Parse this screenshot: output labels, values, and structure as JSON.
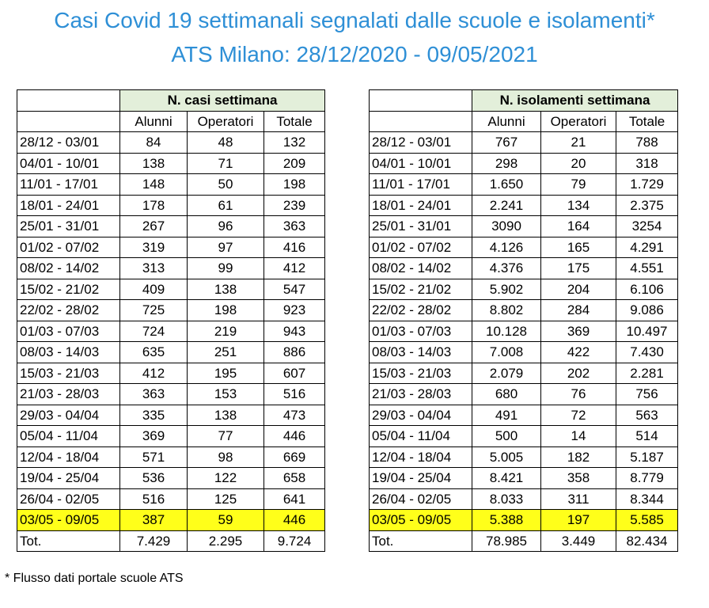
{
  "title_line1": "Casi Covid 19 settimanali segnalati dalle scuole e isolamenti*",
  "title_line2": "ATS Milano: 28/12/2020 - 09/05/2021",
  "columns": [
    "",
    "Alunni",
    "Operatori",
    "Totale"
  ],
  "left_table": {
    "header": "N. casi settimana",
    "rows": [
      [
        "28/12 - 03/01",
        "84",
        "48",
        "132"
      ],
      [
        "04/01 - 10/01",
        "138",
        "71",
        "209"
      ],
      [
        "11/01 - 17/01",
        "148",
        "50",
        "198"
      ],
      [
        "18/01 - 24/01",
        "178",
        "61",
        "239"
      ],
      [
        "25/01 - 31/01",
        "267",
        "96",
        "363"
      ],
      [
        "01/02 - 07/02",
        "319",
        "97",
        "416"
      ],
      [
        "08/02 - 14/02",
        "313",
        "99",
        "412"
      ],
      [
        "15/02 - 21/02",
        "409",
        "138",
        "547"
      ],
      [
        "22/02 - 28/02",
        "725",
        "198",
        "923"
      ],
      [
        "01/03 - 07/03",
        "724",
        "219",
        "943"
      ],
      [
        "08/03 - 14/03",
        "635",
        "251",
        "886"
      ],
      [
        "15/03 - 21/03",
        "412",
        "195",
        "607"
      ],
      [
        "21/03 - 28/03",
        "363",
        "153",
        "516"
      ],
      [
        "29/03 - 04/04",
        "335",
        "138",
        "473"
      ],
      [
        "05/04 - 11/04",
        "369",
        "77",
        "446"
      ],
      [
        "12/04 - 18/04",
        "571",
        "98",
        "669"
      ],
      [
        "19/04 - 25/04",
        "536",
        "122",
        "658"
      ],
      [
        "26/04 - 02/05",
        "516",
        "125",
        "641"
      ],
      [
        "03/05 - 09/05",
        "387",
        "59",
        "446"
      ]
    ],
    "total": [
      "Tot.",
      "7.429",
      "2.295",
      "9.724"
    ]
  },
  "right_table": {
    "header": "N. isolamenti settimana",
    "rows": [
      [
        "28/12 - 03/01",
        "767",
        "21",
        "788"
      ],
      [
        "04/01 - 10/01",
        "298",
        "20",
        "318"
      ],
      [
        "11/01 - 17/01",
        "1.650",
        "79",
        "1.729"
      ],
      [
        "18/01 - 24/01",
        "2.241",
        "134",
        "2.375"
      ],
      [
        "25/01 - 31/01",
        "3090",
        "164",
        "3254"
      ],
      [
        "01/02 - 07/02",
        "4.126",
        "165",
        "4.291"
      ],
      [
        "08/02 - 14/02",
        "4.376",
        "175",
        "4.551"
      ],
      [
        "15/02 - 21/02",
        "5.902",
        "204",
        "6.106"
      ],
      [
        "22/02 - 28/02",
        "8.802",
        "284",
        "9.086"
      ],
      [
        "01/03 - 07/03",
        "10.128",
        "369",
        "10.497"
      ],
      [
        "08/03 - 14/03",
        "7.008",
        "422",
        "7.430"
      ],
      [
        "15/03 - 21/03",
        "2.079",
        "202",
        "2.281"
      ],
      [
        "21/03 - 28/03",
        "680",
        "76",
        "756"
      ],
      [
        "29/03 - 04/04",
        "491",
        "72",
        "563"
      ],
      [
        "05/04 - 11/04",
        "500",
        "14",
        "514"
      ],
      [
        "12/04 - 18/04",
        "5.005",
        "182",
        "5.187"
      ],
      [
        "19/04 - 25/04",
        "8.421",
        "358",
        "8.779"
      ],
      [
        "26/04 - 02/05",
        "8.033",
        "311",
        "8.344"
      ],
      [
        "03/05 - 09/05",
        "5.388",
        "197",
        "5.585"
      ]
    ],
    "total": [
      "Tot.",
      "78.985",
      "3.449",
      "82.434"
    ]
  },
  "highlight_color": "#ffff1a",
  "header_color": "#e3efda",
  "title_color": "#2e8fd6",
  "footnote": "* Flusso dati portale scuole ATS"
}
